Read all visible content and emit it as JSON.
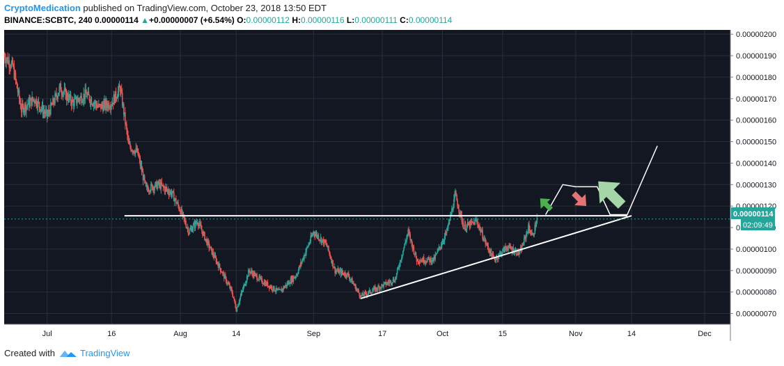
{
  "header": {
    "author": "CryptoMedication",
    "published": "published on TradingView.com, October 23, 2018 13:50 EDT",
    "symbol": "BINANCE:SCBTC, 240",
    "last": "0.00000114",
    "change": "+0.00000007 (+6.54%)",
    "o_label": "O:",
    "o_value": "0.00000112",
    "h_label": "H:",
    "h_value": "0.00000116",
    "l_label": "L:",
    "l_value": "0.00000111",
    "c_label": "C:",
    "c_value": "0.00000114"
  },
  "footer": {
    "created_with": "Created with",
    "brand": "TradingView"
  },
  "price_tag": {
    "price": "0.00000114",
    "countdown": "02:09:49"
  },
  "colors": {
    "background": "#131722",
    "up": "#26a69a",
    "down": "#ef5350",
    "grid": "#2a2e39",
    "accent": "#2196f3",
    "arrow_up_small": "#4caf50",
    "arrow_down": "#e57373",
    "arrow_up_big": "#a5d6a7"
  },
  "chart_data": {
    "type": "candlestick",
    "symbol": "BINANCE:SCBTC",
    "interval": "240",
    "y_axis": {
      "range": [
        6.5e-07,
        2.02e-06
      ],
      "ticks": [
        "0.00000070",
        "0.00000080",
        "0.00000090",
        "0.00000100",
        "0.00000110",
        "0.00000120",
        "0.00000130",
        "0.00000140",
        "0.00000150",
        "0.00000160",
        "0.00000170",
        "0.00000180",
        "0.00000190",
        "0.00000200"
      ],
      "tick_values": [
        7e-07,
        8e-07,
        9e-07,
        1e-06,
        1.1e-06,
        1.2e-06,
        1.3e-06,
        1.4e-06,
        1.5e-06,
        1.6e-06,
        1.7e-06,
        1.8e-06,
        1.9e-06,
        2e-06
      ],
      "position": "right"
    },
    "x_axis": {
      "range": [
        "2018-06-21",
        "2018-12-07"
      ],
      "ticks": [
        {
          "label": "Jul",
          "date": "2018-07-01"
        },
        {
          "label": "16",
          "date": "2018-07-16"
        },
        {
          "label": "Aug",
          "date": "2018-08-01"
        },
        {
          "label": "14",
          "date": "2018-08-14"
        },
        {
          "label": "Sep",
          "date": "2018-09-01"
        },
        {
          "label": "17",
          "date": "2018-09-17"
        },
        {
          "label": "Oct",
          "date": "2018-10-01"
        },
        {
          "label": "15",
          "date": "2018-10-15"
        },
        {
          "label": "Nov",
          "date": "2018-11-01"
        },
        {
          "label": "14",
          "date": "2018-11-14"
        },
        {
          "label": "Dec",
          "date": "2018-12-01"
        }
      ]
    },
    "grid": true,
    "price_path": [
      {
        "d": "2018-06-21",
        "p": 1.9e-06
      },
      {
        "d": "2018-06-23",
        "p": 1.85e-06
      },
      {
        "d": "2018-06-25",
        "p": 1.65e-06
      },
      {
        "d": "2018-06-28",
        "p": 1.7e-06
      },
      {
        "d": "2018-07-01",
        "p": 1.62e-06
      },
      {
        "d": "2018-07-04",
        "p": 1.75e-06
      },
      {
        "d": "2018-07-07",
        "p": 1.68e-06
      },
      {
        "d": "2018-07-10",
        "p": 1.72e-06
      },
      {
        "d": "2018-07-13",
        "p": 1.66e-06
      },
      {
        "d": "2018-07-16",
        "p": 1.68e-06
      },
      {
        "d": "2018-07-18",
        "p": 1.75e-06
      },
      {
        "d": "2018-07-20",
        "p": 1.48e-06
      },
      {
        "d": "2018-07-22",
        "p": 1.45e-06
      },
      {
        "d": "2018-07-24",
        "p": 1.28e-06
      },
      {
        "d": "2018-07-27",
        "p": 1.3e-06
      },
      {
        "d": "2018-07-30",
        "p": 1.26e-06
      },
      {
        "d": "2018-08-01",
        "p": 1.18e-06
      },
      {
        "d": "2018-08-03",
        "p": 1.08e-06
      },
      {
        "d": "2018-08-05",
        "p": 1.13e-06
      },
      {
        "d": "2018-08-07",
        "p": 1.04e-06
      },
      {
        "d": "2018-08-10",
        "p": 9.2e-07
      },
      {
        "d": "2018-08-13",
        "p": 8e-07
      },
      {
        "d": "2018-08-14",
        "p": 7.2e-07
      },
      {
        "d": "2018-08-17",
        "p": 9e-07
      },
      {
        "d": "2018-08-20",
        "p": 8.5e-07
      },
      {
        "d": "2018-08-24",
        "p": 8e-07
      },
      {
        "d": "2018-08-28",
        "p": 8.8e-07
      },
      {
        "d": "2018-09-01",
        "p": 1.08e-06
      },
      {
        "d": "2018-09-04",
        "p": 1.02e-06
      },
      {
        "d": "2018-09-06",
        "p": 9e-07
      },
      {
        "d": "2018-09-09",
        "p": 8.8e-07
      },
      {
        "d": "2018-09-12",
        "p": 7.8e-07
      },
      {
        "d": "2018-09-16",
        "p": 8.2e-07
      },
      {
        "d": "2018-09-20",
        "p": 8.6e-07
      },
      {
        "d": "2018-09-23",
        "p": 1.08e-06
      },
      {
        "d": "2018-09-25",
        "p": 9.5e-07
      },
      {
        "d": "2018-09-29",
        "p": 9.5e-07
      },
      {
        "d": "2018-10-02",
        "p": 1.08e-06
      },
      {
        "d": "2018-10-04",
        "p": 1.25e-06
      },
      {
        "d": "2018-10-06",
        "p": 1.1e-06
      },
      {
        "d": "2018-10-09",
        "p": 1.13e-06
      },
      {
        "d": "2018-10-11",
        "p": 1.03e-06
      },
      {
        "d": "2018-10-13",
        "p": 9.5e-07
      },
      {
        "d": "2018-10-16",
        "p": 1.01e-06
      },
      {
        "d": "2018-10-19",
        "p": 9.8e-07
      },
      {
        "d": "2018-10-21",
        "p": 1.1e-06
      },
      {
        "d": "2018-10-22",
        "p": 1.06e-06
      },
      {
        "d": "2018-10-23",
        "p": 1.14e-06
      }
    ],
    "annotations": {
      "horizontal_resistance": {
        "price": 1.155e-06,
        "from": "2018-07-19",
        "to": "2018-11-13"
      },
      "ascending_support": {
        "from": {
          "d": "2018-09-12",
          "p": 7.7e-07
        },
        "to": {
          "d": "2018-11-14",
          "p": 1.155e-06
        }
      },
      "current_price_line": 1.14e-06,
      "projection": [
        {
          "d": "2018-10-25",
          "p": 1.16e-06
        },
        {
          "d": "2018-10-29",
          "p": 1.3e-06
        },
        {
          "d": "2018-11-01",
          "p": 1.29e-06
        },
        {
          "d": "2018-11-06",
          "p": 1.29e-06
        },
        {
          "d": "2018-11-09",
          "p": 1.16e-06
        },
        {
          "d": "2018-11-13",
          "p": 1.16e-06
        },
        {
          "d": "2018-11-20",
          "p": 1.48e-06
        }
      ],
      "arrows": [
        {
          "kind": "up-small",
          "d": "2018-10-25",
          "p": 1.21e-06
        },
        {
          "kind": "down",
          "d": "2018-11-02",
          "p": 1.23e-06
        },
        {
          "kind": "up-big",
          "d": "2018-11-09",
          "p": 1.26e-06
        }
      ]
    }
  }
}
